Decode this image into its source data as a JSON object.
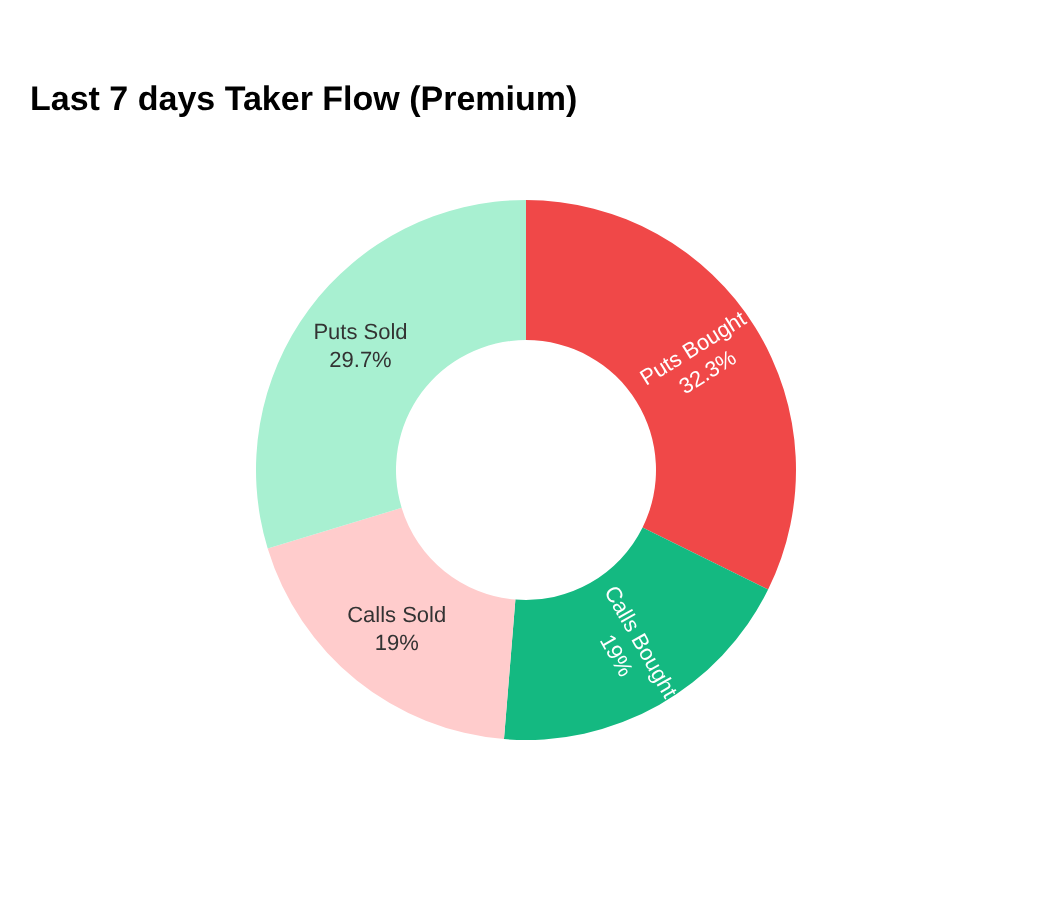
{
  "chart_data": {
    "type": "donut",
    "title": "Last 7 days Taker Flow (Premium)",
    "categories": [
      "Puts Bought",
      "Calls Bought",
      "Calls Sold",
      "Puts Sold"
    ],
    "values": [
      32.3,
      19,
      19,
      29.7
    ],
    "colors": [
      "#f04848",
      "#14b981",
      "#ffcccc",
      "#a8f0d1"
    ],
    "value_labels": [
      "32.3%",
      "19%",
      "19%",
      "29.7%"
    ],
    "legend": false
  }
}
